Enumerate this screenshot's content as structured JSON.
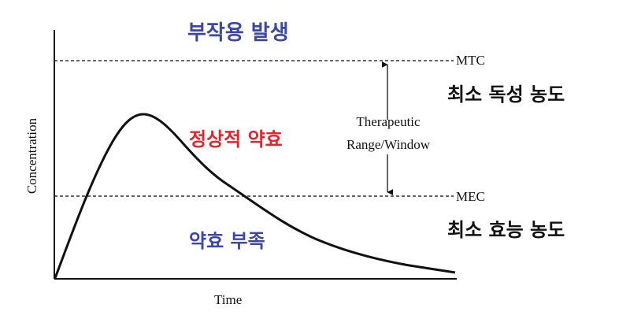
{
  "labels": {
    "x_axis": "Time",
    "y_axis": "Concentration",
    "mtc": "MTC",
    "mec": "MEC",
    "therapeutic_line1": "Therapeutic",
    "therapeutic_line2": "Range/Window",
    "mtc_korean": "최소 독성 농도",
    "mec_korean": "최소 효능 농도",
    "zone_side_effects": "부작용 발생",
    "zone_therapeutic": "정상적 약효",
    "zone_insufficient": "약효 부족"
  },
  "colors": {
    "line": "#111111",
    "dashed": "#333333",
    "zone_blue": "#3a46a8",
    "zone_red": "#e5232c",
    "text": "#111111"
  }
}
